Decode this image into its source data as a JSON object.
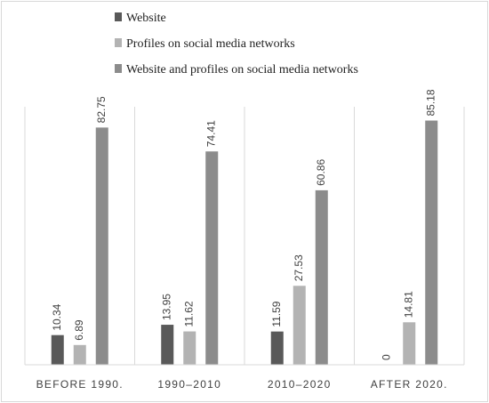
{
  "chart_data": {
    "type": "bar",
    "title": "",
    "xlabel": "",
    "ylabel": "",
    "ylim": [
      0,
      90
    ],
    "grid": false,
    "legend_position": "top-left",
    "categories": [
      "BEFORE 1990.",
      "1990–2010",
      "2010–2020",
      "AFTER 2020."
    ],
    "series": [
      {
        "name": "Website",
        "color": "#595959",
        "values": [
          10.34,
          13.95,
          11.59,
          0
        ],
        "labels": [
          "10.34",
          "13.95",
          "11.59",
          "0"
        ]
      },
      {
        "name": "Profiles on social media networks",
        "color": "#b3b3b3",
        "values": [
          6.89,
          11.62,
          27.53,
          14.81
        ],
        "labels": [
          "6.89",
          "11.62",
          "27.53",
          "14.81"
        ]
      },
      {
        "name": "Website and profiles on social media networks",
        "color": "#8c8c8c",
        "values": [
          82.75,
          74.41,
          60.86,
          85.18
        ],
        "labels": [
          "82.75",
          "74.41",
          "60.86",
          "85.18"
        ]
      }
    ]
  }
}
